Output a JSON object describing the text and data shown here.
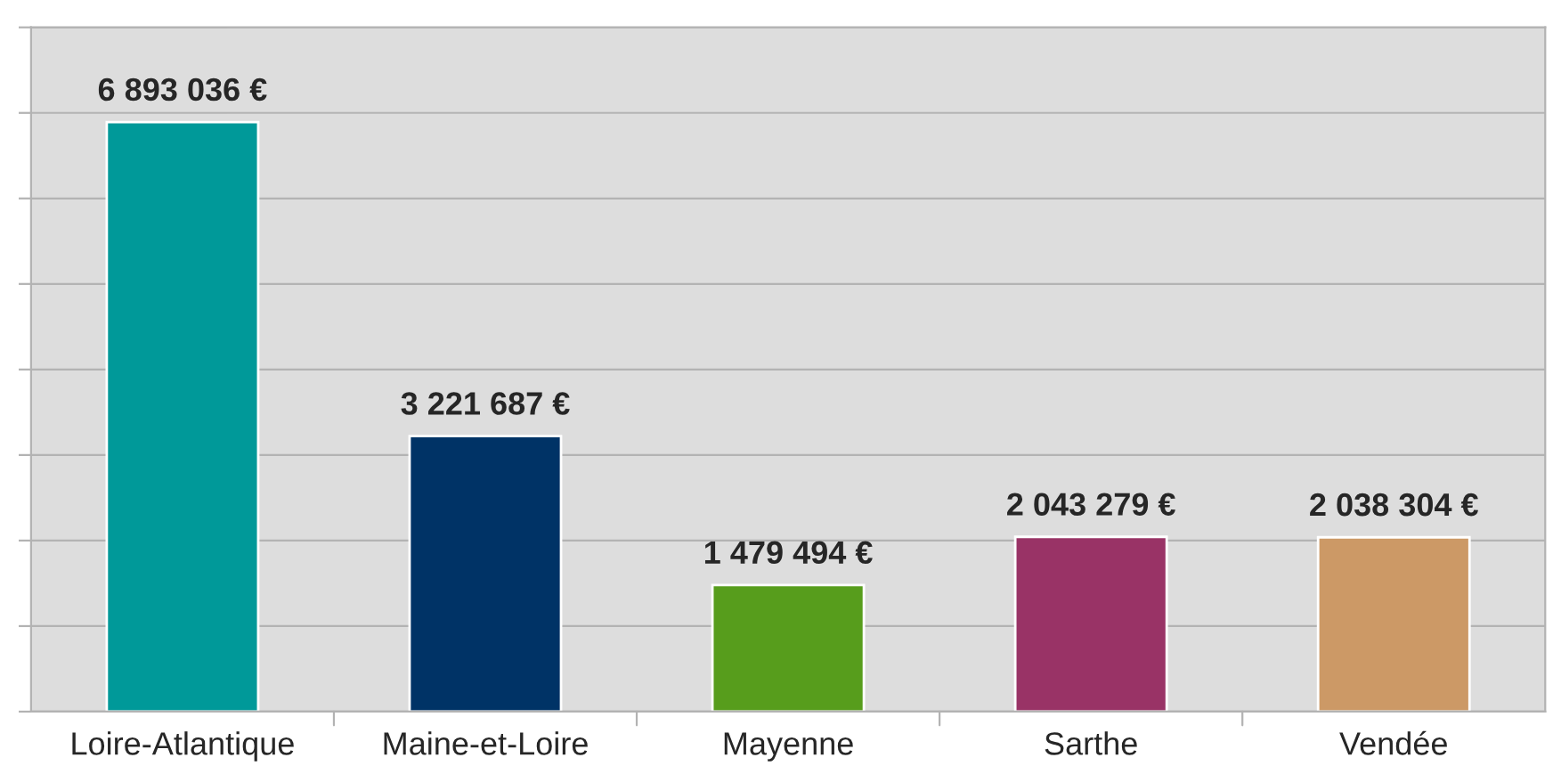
{
  "chart_data": {
    "type": "bar",
    "categories": [
      "Loire-Atlantique",
      "Maine-et-Loire",
      "Mayenne",
      "Sarthe",
      "Vendée"
    ],
    "values": [
      6893036,
      3221687,
      1479494,
      2043279,
      2038304
    ],
    "value_labels": [
      "6 893 036 €",
      "3 221 687 €",
      "1 479 494 €",
      "2 043 279 €",
      "2 038 304 €"
    ],
    "colors": [
      "#009999",
      "#003366",
      "#579d1c",
      "#993366",
      "#cc9966"
    ],
    "ylim": [
      0,
      8000000
    ],
    "yticks": [
      {
        "value": 0,
        "label": null
      },
      {
        "value": 1000000,
        "label": null
      },
      {
        "value": 2000000,
        "label": null
      },
      {
        "value": 3000000,
        "label": null
      },
      {
        "value": 4000000,
        "label": null
      },
      {
        "value": 5000000,
        "label": null
      },
      {
        "value": 6000000,
        "label": null
      },
      {
        "value": 7000000,
        "label": null
      },
      {
        "value": 8000000,
        "label": null
      }
    ],
    "grid": "y",
    "tick_labels": "x"
  }
}
